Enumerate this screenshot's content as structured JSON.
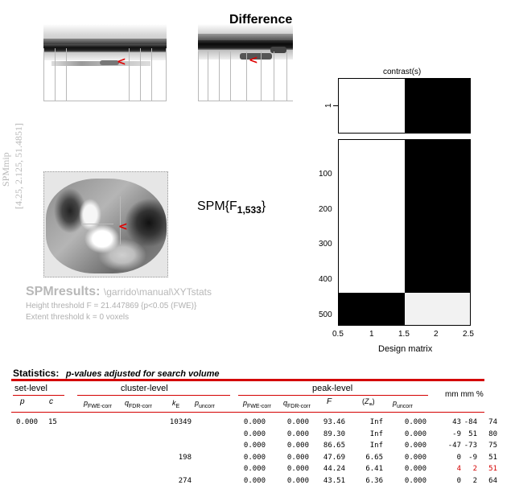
{
  "mip": {
    "title": "Difference",
    "side_label": "SPMmip",
    "coords": "[4.25, 2.125, 51.4851]"
  },
  "stat_label": {
    "main": "SPM{F",
    "sub": "1,533",
    "close": "}"
  },
  "results": {
    "title": "SPMresults:",
    "path": "\\garrido\\manual\\XYTstats",
    "height_threshold": "Height threshold F = 21.447869  {p<0.05 (FWE)}",
    "extent_threshold": "Extent threshold k = 0 voxels"
  },
  "contrast_panel": {
    "title": "contrast(s)",
    "row_label": "1",
    "colors": {
      "white": "#ffffff",
      "black": "#000000",
      "light": "#f2f2f2"
    }
  },
  "design_matrix": {
    "xlabel": "Design matrix",
    "xticks": [
      "0.5",
      "1",
      "1.5",
      "2",
      "2.5"
    ],
    "yticks": [
      "100",
      "200",
      "300",
      "400",
      "500"
    ]
  },
  "stats": {
    "heading_bold": "Statistics:",
    "heading_italic": "p-values adjusted for search volume",
    "groups": {
      "set": "set-level",
      "cluster": "cluster-level",
      "peak": "peak-level",
      "mm": "mm mm %"
    },
    "accent": "#d40000",
    "rows": [
      {
        "p": "0.000",
        "c": "15",
        "pfwe_c": "",
        "pfdr_c": "",
        "ke": "10349",
        "punc_c": "",
        "pfwe": "0.000",
        "pfdr": "0.000",
        "F": "93.46",
        "Z": "Inf",
        "punc": "0.000",
        "mm1": "43",
        "mm2": "-84",
        "mm3": "74",
        "highlight": false
      },
      {
        "p": "",
        "c": "",
        "pfwe_c": "",
        "pfdr_c": "",
        "ke": "",
        "punc_c": "",
        "pfwe": "0.000",
        "pfdr": "0.000",
        "F": "89.30",
        "Z": "Inf",
        "punc": "0.000",
        "mm1": "-9",
        "mm2": "51",
        "mm3": "80",
        "highlight": false
      },
      {
        "p": "",
        "c": "",
        "pfwe_c": "",
        "pfdr_c": "",
        "ke": "",
        "punc_c": "",
        "pfwe": "0.000",
        "pfdr": "0.000",
        "F": "86.65",
        "Z": "Inf",
        "punc": "0.000",
        "mm1": "-47",
        "mm2": "-73",
        "mm3": "75",
        "highlight": false
      },
      {
        "p": "",
        "c": "",
        "pfwe_c": "",
        "pfdr_c": "",
        "ke": "198",
        "punc_c": "",
        "pfwe": "0.000",
        "pfdr": "0.000",
        "F": "47.69",
        "Z": "6.65",
        "punc": "0.000",
        "mm1": "0",
        "mm2": "-9",
        "mm3": "51",
        "highlight": false
      },
      {
        "p": "",
        "c": "",
        "pfwe_c": "",
        "pfdr_c": "",
        "ke": "",
        "punc_c": "",
        "pfwe": "0.000",
        "pfdr": "0.000",
        "F": "44.24",
        "Z": "6.41",
        "punc": "0.000",
        "mm1": "4",
        "mm2": "2",
        "mm3": "51",
        "highlight": true
      },
      {
        "p": "",
        "c": "",
        "pfwe_c": "",
        "pfdr_c": "",
        "ke": "274",
        "punc_c": "",
        "pfwe": "0.000",
        "pfdr": "0.000",
        "F": "43.51",
        "Z": "6.36",
        "punc": "0.000",
        "mm1": "0",
        "mm2": "2",
        "mm3": "64",
        "highlight": false
      }
    ]
  }
}
